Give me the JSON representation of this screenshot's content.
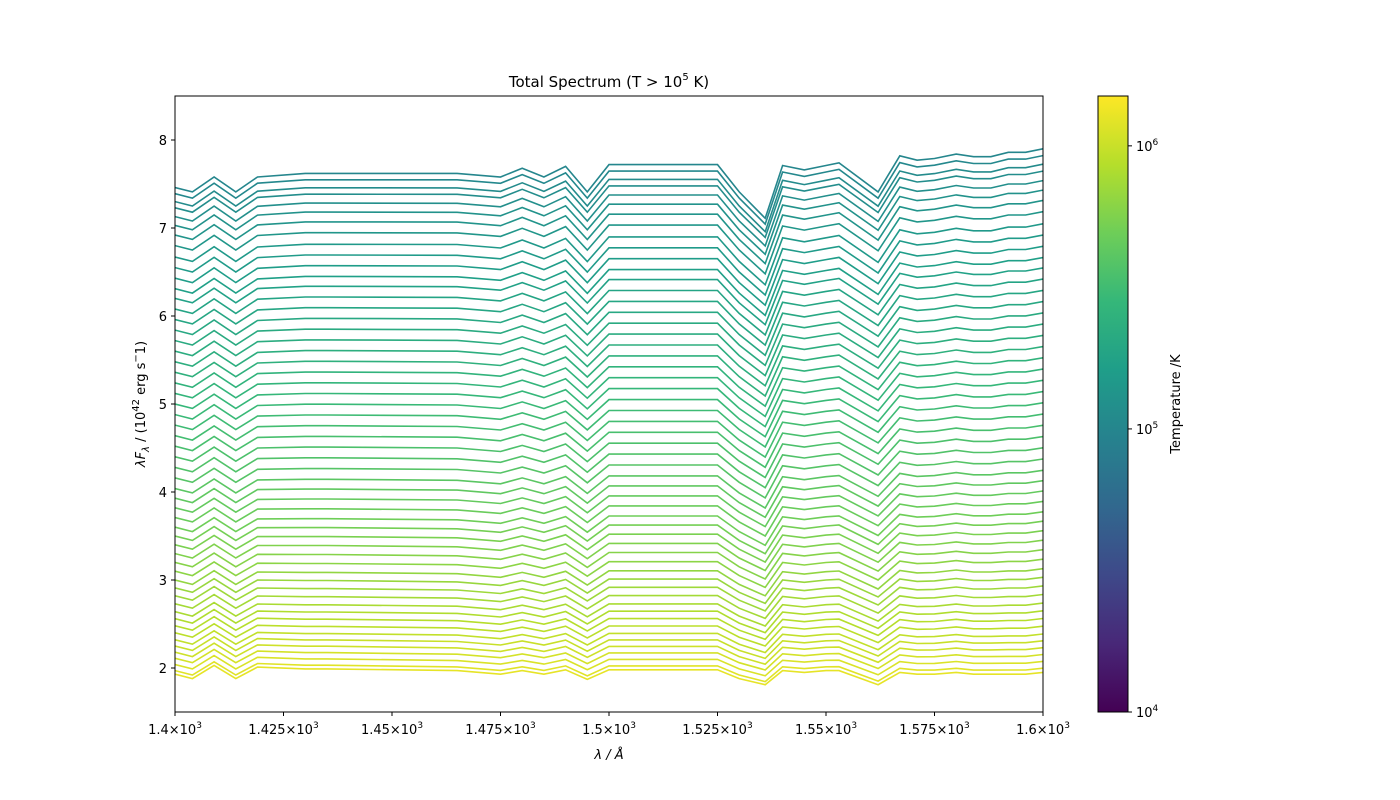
{
  "chart_data": {
    "type": "line",
    "title": {
      "prefix": "Total Spectrum (T > 10",
      "exp": "5",
      "suffix": " K)"
    },
    "xlabel": {
      "text": "λ / Å"
    },
    "ylabel": {
      "a": "λF",
      "sub": "λ",
      "b": " / (10",
      "exp1": "42",
      "c": " erg s",
      "exp2": "−",
      "d": "1)"
    },
    "xlim": [
      1400,
      1600
    ],
    "ylim": [
      1.5,
      8.5
    ],
    "x_ticks": [
      {
        "value": 1400,
        "mant": "1.4×10",
        "exp": "3"
      },
      {
        "value": 1425,
        "mant": "1.425×10",
        "exp": "3"
      },
      {
        "value": 1450,
        "mant": "1.45×10",
        "exp": "3"
      },
      {
        "value": 1475,
        "mant": "1.475×10",
        "exp": "3"
      },
      {
        "value": 1500,
        "mant": "1.5×10",
        "exp": "3"
      },
      {
        "value": 1525,
        "mant": "1.525×10",
        "exp": "3"
      },
      {
        "value": 1550,
        "mant": "1.55×10",
        "exp": "3"
      },
      {
        "value": 1575,
        "mant": "1.575×10",
        "exp": "3"
      },
      {
        "value": 1600,
        "mant": "1.6×10",
        "exp": "3"
      }
    ],
    "y_ticks": [
      {
        "value": 2,
        "label": "2"
      },
      {
        "value": 3,
        "label": "3"
      },
      {
        "value": 4,
        "label": "4"
      },
      {
        "value": 5,
        "label": "5"
      },
      {
        "value": 6,
        "label": "6"
      },
      {
        "value": 7,
        "label": "7"
      },
      {
        "value": 8,
        "label": "8"
      }
    ],
    "x": [
      1400,
      1404,
      1409,
      1414,
      1419,
      1430,
      1435,
      1465,
      1475,
      1480,
      1485,
      1490,
      1495,
      1500,
      1512,
      1525,
      1530,
      1536,
      1540,
      1545,
      1550,
      1553,
      1562,
      1567,
      1571,
      1575,
      1580,
      1584,
      1588,
      1592,
      1596,
      1600
    ],
    "shape_top": [
      0,
      -0.05,
      0.12,
      -0.05,
      0.12,
      0.16,
      0.16,
      0.16,
      0.12,
      0.22,
      0.12,
      0.24,
      -0.05,
      0.26,
      0.26,
      0.26,
      -0.05,
      -0.35,
      0.25,
      0.2,
      0.25,
      0.28,
      -0.05,
      0.36,
      0.31,
      0.33,
      0.38,
      0.35,
      0.35,
      0.4,
      0.4,
      0.44
    ],
    "shape_bottom": [
      0,
      -0.05,
      0.1,
      -0.05,
      0.08,
      0.06,
      0.06,
      0.04,
      0,
      0.04,
      0,
      0.05,
      -0.06,
      0.05,
      0.05,
      0.05,
      -0.05,
      -0.12,
      0.04,
      0.02,
      0.04,
      0.04,
      -0.12,
      0.02,
      0,
      0,
      0.02,
      0,
      0,
      0,
      0,
      0.02
    ],
    "series_start_values": [
      7.46,
      7.39,
      7.3,
      7.23,
      7.13,
      7.03,
      6.92,
      6.8,
      6.67,
      6.55,
      6.43,
      6.31,
      6.2,
      6.08,
      5.96,
      5.84,
      5.72,
      5.6,
      5.48,
      5.36,
      5.24,
      5.12,
      5.0,
      4.88,
      4.76,
      4.64,
      4.52,
      4.4,
      4.28,
      4.16,
      4.04,
      3.93,
      3.82,
      3.71,
      3.6,
      3.5,
      3.4,
      3.3,
      3.2,
      3.1,
      3.0,
      2.91,
      2.82,
      2.73,
      2.64,
      2.56,
      2.48,
      2.4,
      2.32,
      2.25,
      2.18,
      2.11,
      2.04,
      1.97,
      1.93
    ],
    "series_temperatures_log10": {
      "start": 5.0,
      "end": 6.1
    },
    "colorbar": {
      "label": "Temperature /K",
      "scale": "log",
      "range": [
        10000,
        1500000
      ],
      "colormap": "viridis",
      "colors": [
        "#440154",
        "#482878",
        "#3e4989",
        "#31688e",
        "#26828e",
        "#1f9e89",
        "#35b779",
        "#6ece58",
        "#b5de2b",
        "#fde725"
      ],
      "ticks": [
        {
          "value": 10000,
          "mant": "10",
          "exp": "4"
        },
        {
          "value": 100000,
          "mant": "10",
          "exp": "5"
        },
        {
          "value": 1000000,
          "mant": "10",
          "exp": "6"
        }
      ]
    },
    "grid": false,
    "legend": "none"
  }
}
